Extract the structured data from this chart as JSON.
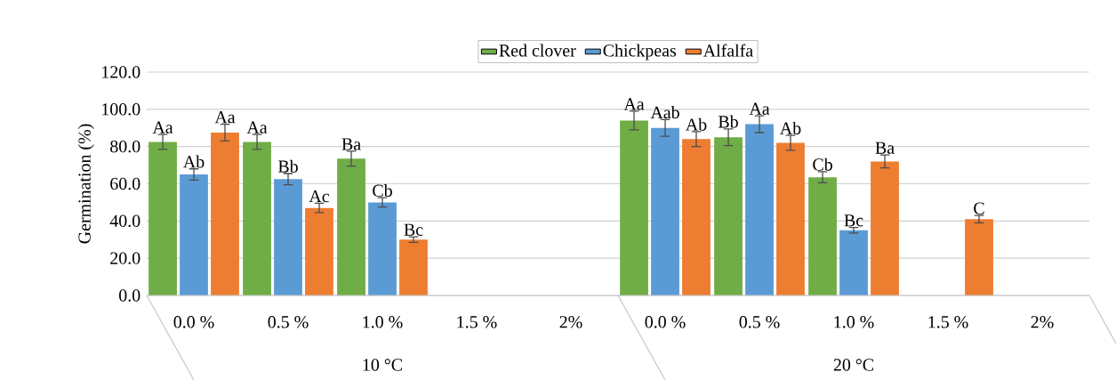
{
  "chart_data": {
    "type": "bar",
    "ylabel": "Germination (%)",
    "categories": [
      "0.0 %",
      "0.5 %",
      "1.0 %",
      "1.5 %",
      "2%",
      "0.0 %",
      "0.5 %",
      "1.0 %",
      "1.5 %",
      "2%"
    ],
    "annotations": [
      "10 °C",
      "20 °C"
    ],
    "series": [
      {
        "name": "Red clover",
        "color": "#70ad47",
        "values": [
          82.5,
          82.5,
          73.5,
          0,
          0,
          94,
          85,
          63.5,
          0,
          0
        ],
        "errors": [
          4,
          4,
          4,
          null,
          null,
          5,
          4.5,
          3,
          null,
          null
        ],
        "value_labels": [
          "Aa",
          "Aa",
          "Ba",
          null,
          null,
          "Aa",
          "Bb",
          "Cb",
          null,
          null
        ]
      },
      {
        "name": "Chickpeas",
        "color": "#5b9bd5",
        "values": [
          65,
          62.5,
          50,
          0,
          0,
          90,
          92,
          35,
          0,
          0
        ],
        "errors": [
          3,
          3,
          2.5,
          null,
          null,
          4.5,
          4.5,
          1.5,
          null,
          null
        ],
        "value_labels": [
          "Ab",
          "Bb",
          "Cb",
          null,
          null,
          "Aab",
          "Aa",
          "Bc",
          null,
          null
        ]
      },
      {
        "name": "Alfalfa",
        "color": "#ed7d31",
        "values": [
          87.5,
          47,
          30,
          0,
          0,
          84,
          82,
          72,
          41,
          0
        ],
        "errors": [
          4.5,
          2.5,
          1.5,
          null,
          null,
          4,
          4,
          3.5,
          2,
          null
        ],
        "value_labels": [
          "Aa",
          "Ac",
          "Bc",
          null,
          null,
          "Ab",
          "Ab",
          "Ba",
          "C",
          null
        ]
      }
    ],
    "ylim": [
      0,
      120
    ],
    "yticks": [
      {
        "value": 0,
        "label": "0.0"
      },
      {
        "value": 20,
        "label": "20.0"
      },
      {
        "value": 40,
        "label": "40.0"
      },
      {
        "value": 60,
        "label": "60.0"
      },
      {
        "value": 80,
        "label": "80.0"
      },
      {
        "value": 100,
        "label": "100.0"
      },
      {
        "value": 120,
        "label": "120.0"
      }
    ],
    "grid": "y",
    "legend": "top"
  }
}
